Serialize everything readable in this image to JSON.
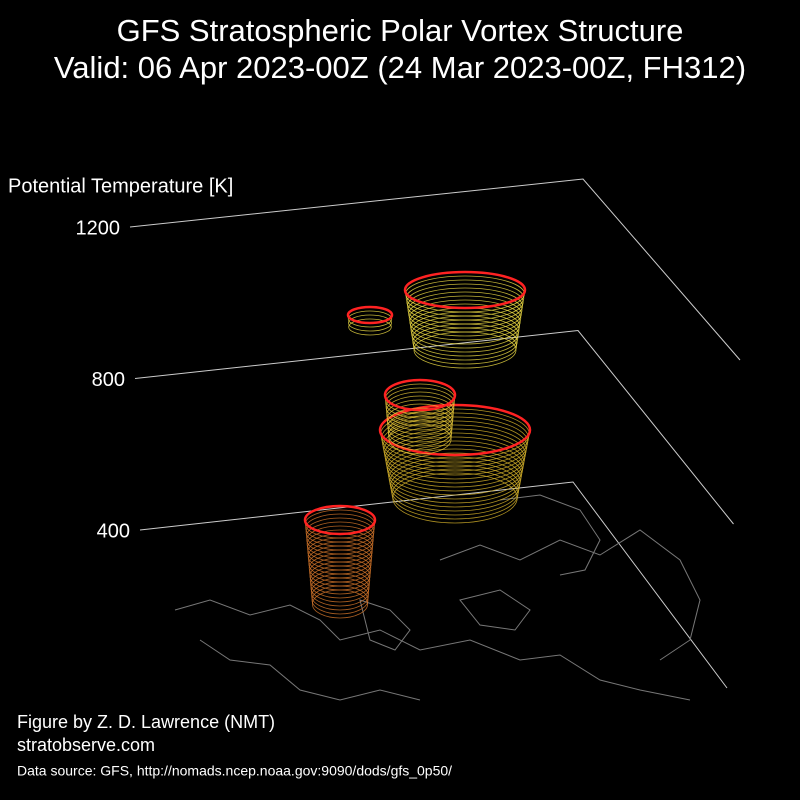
{
  "chart_data": {
    "type": "vortex3d",
    "title": "GFS Stratospheric Polar Vortex Structure",
    "subtitle": "Valid: 06 Apr 2023-00Z  (24 Mar 2023-00Z, FH312)",
    "zlabel": "Potential Temperature [K]",
    "zlim": [
      400,
      1200
    ],
    "zticks": [
      400,
      800,
      1200
    ]
  },
  "footer": {
    "credit": "Figure by Z. D. Lawrence (NMT)",
    "site": "stratobserve.com",
    "source": "Data source: GFS, http://nomads.ncep.noaa.gov:9090/dods/gfs_0p50/"
  }
}
